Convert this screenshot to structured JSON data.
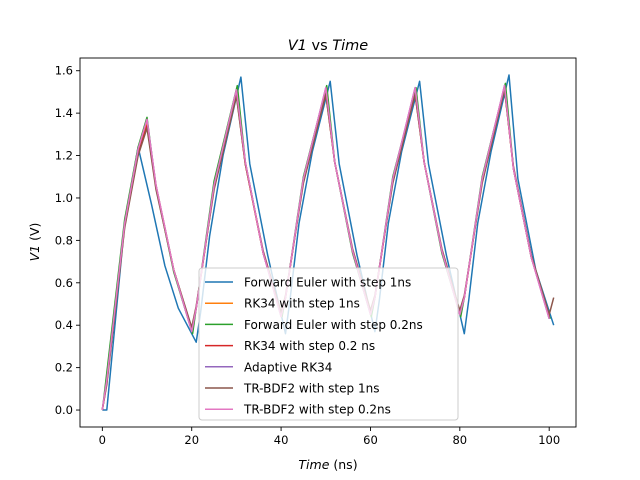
{
  "chart_data": {
    "type": "line",
    "title": {
      "v": "V1",
      "vs": " vs ",
      "t": "Time"
    },
    "xlabel": {
      "t": "Time",
      "unit": " (ns)"
    },
    "ylabel": {
      "v": "V1",
      "unit": " (V)"
    },
    "xlim": [
      -5,
      106
    ],
    "ylim": [
      -0.08,
      1.66
    ],
    "xticks": [
      0,
      20,
      40,
      60,
      80,
      100
    ],
    "yticks": [
      0.0,
      0.2,
      0.4,
      0.6,
      0.8,
      1.0,
      1.2,
      1.4,
      1.6
    ],
    "xtick_labels": [
      "0",
      "20",
      "40",
      "60",
      "80",
      "100"
    ],
    "ytick_labels": [
      "0.0",
      "0.2",
      "0.4",
      "0.6",
      "0.8",
      "1.0",
      "1.2",
      "1.4",
      "1.6"
    ],
    "grid": false,
    "legend_position": "bottom-center",
    "series": [
      {
        "name": "Forward Euler with step 1ns",
        "color": "#1f77b4",
        "x": [
          0,
          1,
          5,
          8,
          11,
          14,
          17,
          21,
          22,
          24,
          27,
          31,
          33,
          37,
          41,
          42,
          44,
          47,
          51,
          53,
          57,
          61,
          62,
          64,
          67,
          71,
          73,
          77,
          81,
          82,
          84,
          87,
          91,
          93,
          97,
          101
        ],
        "y": [
          0.0,
          0.0,
          0.88,
          1.24,
          0.97,
          0.68,
          0.48,
          0.32,
          0.46,
          0.82,
          1.2,
          1.57,
          1.16,
          0.73,
          0.36,
          0.52,
          0.88,
          1.22,
          1.55,
          1.16,
          0.73,
          0.37,
          0.52,
          0.88,
          1.22,
          1.55,
          1.16,
          0.73,
          0.36,
          0.52,
          0.88,
          1.22,
          1.58,
          1.09,
          0.66,
          0.4
        ]
      },
      {
        "name": "RK34 with step 1ns",
        "color": "#ff7f0e",
        "x": [
          0,
          1,
          5,
          8,
          10,
          12,
          16,
          20,
          21,
          25,
          30,
          32,
          36,
          40,
          41,
          45,
          50,
          52,
          56,
          60,
          61,
          65,
          70,
          72,
          76,
          80,
          81,
          85,
          90,
          92,
          96,
          100
        ],
        "y": [
          0.0,
          0.13,
          0.88,
          1.22,
          1.35,
          1.06,
          0.66,
          0.38,
          0.48,
          1.05,
          1.49,
          1.16,
          0.74,
          0.45,
          0.53,
          1.08,
          1.5,
          1.17,
          0.75,
          0.46,
          0.53,
          1.08,
          1.5,
          1.17,
          0.75,
          0.46,
          0.53,
          1.08,
          1.52,
          1.14,
          0.72,
          0.44
        ]
      },
      {
        "name": "Forward Euler with step 0.2ns",
        "color": "#2ca02c",
        "x": [
          0,
          0.3,
          5,
          8,
          10,
          12,
          16,
          20.2,
          21,
          25,
          30.2,
          32,
          36,
          40.2,
          41,
          45,
          50.2,
          52,
          56,
          60.2,
          61,
          65,
          70.2,
          72,
          76,
          80.2,
          81,
          85,
          90.2,
          92,
          96,
          100.2
        ],
        "y": [
          0.0,
          0.05,
          0.9,
          1.24,
          1.38,
          1.05,
          0.65,
          0.36,
          0.48,
          1.08,
          1.53,
          1.17,
          0.74,
          0.44,
          0.53,
          1.1,
          1.53,
          1.17,
          0.74,
          0.44,
          0.53,
          1.1,
          1.52,
          1.17,
          0.74,
          0.44,
          0.53,
          1.1,
          1.54,
          1.14,
          0.72,
          0.43
        ]
      },
      {
        "name": "RK34 with step 0.2 ns",
        "color": "#d62728",
        "x": [
          0,
          1,
          5,
          8,
          10,
          12,
          16,
          20,
          21,
          25,
          30,
          32,
          36,
          40,
          41,
          45,
          50,
          52,
          56,
          60,
          61,
          65,
          70,
          72,
          76,
          80,
          81,
          85,
          90,
          92,
          96,
          100
        ],
        "y": [
          0.0,
          0.13,
          0.87,
          1.21,
          1.34,
          1.05,
          0.66,
          0.38,
          0.48,
          1.05,
          1.49,
          1.16,
          0.74,
          0.45,
          0.53,
          1.08,
          1.49,
          1.17,
          0.75,
          0.46,
          0.53,
          1.08,
          1.49,
          1.17,
          0.75,
          0.46,
          0.53,
          1.08,
          1.52,
          1.14,
          0.72,
          0.44
        ]
      },
      {
        "name": "Adaptive RK34",
        "color": "#9467bd",
        "x": [
          0,
          1,
          5,
          8,
          10,
          12,
          16,
          20,
          21,
          25,
          30,
          32,
          36,
          40,
          41,
          45,
          50,
          52,
          56,
          60,
          61,
          65,
          70,
          72,
          76,
          80,
          81,
          85,
          90,
          92,
          96,
          100
        ],
        "y": [
          0.0,
          0.14,
          0.88,
          1.23,
          1.37,
          1.06,
          0.66,
          0.37,
          0.48,
          1.06,
          1.51,
          1.17,
          0.74,
          0.44,
          0.53,
          1.09,
          1.52,
          1.17,
          0.75,
          0.45,
          0.53,
          1.09,
          1.52,
          1.17,
          0.75,
          0.45,
          0.53,
          1.09,
          1.53,
          1.14,
          0.72,
          0.43
        ]
      },
      {
        "name": "TR-BDF2 with step 1ns",
        "color": "#8c564b",
        "x": [
          0,
          1,
          5,
          8,
          10,
          12,
          16,
          20,
          21,
          25,
          30,
          32,
          36,
          40,
          41,
          45,
          50,
          52,
          56,
          60,
          61,
          65,
          70,
          72,
          76,
          80,
          81,
          85,
          90,
          92,
          96,
          100,
          101
        ],
        "y": [
          0.0,
          0.12,
          0.86,
          1.2,
          1.33,
          1.04,
          0.66,
          0.39,
          0.49,
          1.04,
          1.48,
          1.16,
          0.75,
          0.46,
          0.54,
          1.07,
          1.49,
          1.17,
          0.76,
          0.47,
          0.54,
          1.07,
          1.49,
          1.17,
          0.76,
          0.47,
          0.54,
          1.07,
          1.51,
          1.15,
          0.73,
          0.45,
          0.53
        ]
      },
      {
        "name": "TR-BDF2 with step 0.2ns",
        "color": "#e377c2",
        "x": [
          0,
          1,
          5,
          8,
          10,
          12,
          16,
          20,
          21,
          25,
          30,
          32,
          36,
          40,
          41,
          45,
          50,
          52,
          56,
          60,
          61,
          65,
          70,
          72,
          76,
          80,
          81,
          85,
          90,
          92,
          96,
          100
        ],
        "y": [
          0.0,
          0.14,
          0.88,
          1.23,
          1.37,
          1.06,
          0.66,
          0.37,
          0.48,
          1.06,
          1.51,
          1.17,
          0.74,
          0.44,
          0.53,
          1.09,
          1.52,
          1.17,
          0.75,
          0.45,
          0.53,
          1.09,
          1.52,
          1.17,
          0.75,
          0.45,
          0.53,
          1.09,
          1.53,
          1.14,
          0.72,
          0.43
        ]
      }
    ]
  }
}
